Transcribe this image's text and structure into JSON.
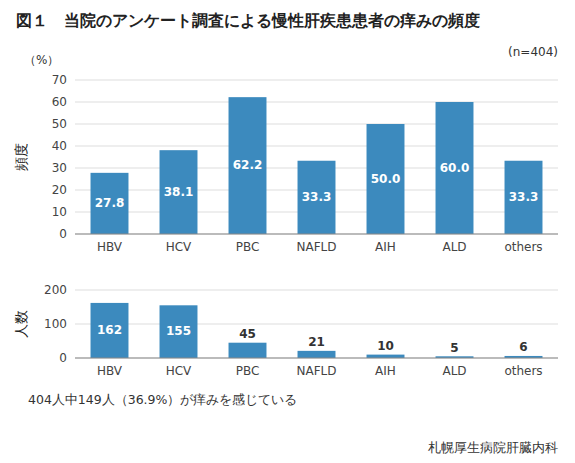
{
  "chart_data": [
    {
      "type": "bar",
      "title": "図１　当院のアンケート調査による慢性肝疾患患者の痒みの頻度",
      "annotations": [
        "(n=404)",
        "（%）"
      ],
      "y_label": "頻度",
      "categories": [
        "HBV",
        "HCV",
        "PBC",
        "NAFLD",
        "AIH",
        "ALD",
        "others"
      ],
      "values": [
        27.8,
        38.1,
        62.2,
        33.3,
        50.0,
        60.0,
        33.3
      ],
      "value_labels": [
        "27.8",
        "38.1",
        "62.2",
        "33.3",
        "50.0",
        "60.0",
        "33.3"
      ],
      "color": "#3C8ABE",
      "ylim": [
        0,
        70
      ],
      "yticks": [
        0,
        10,
        20,
        30,
        40,
        50,
        60,
        70
      ],
      "grid": true,
      "data_labels": true
    },
    {
      "type": "bar",
      "y_label": "人数",
      "annotations": [
        "404人中149人（36.9%）が痒みを感じている",
        "札幌厚生病院肝臓内科"
      ],
      "categories": [
        "HBV",
        "HCV",
        "PBC",
        "NAFLD",
        "AIH",
        "ALD",
        "others"
      ],
      "values": [
        162,
        155,
        45,
        21,
        10,
        5,
        6
      ],
      "color": "#3C8ABE",
      "ylim": [
        0,
        200
      ],
      "yticks": [
        0,
        100,
        200
      ],
      "grid": true,
      "data_labels": true
    }
  ]
}
